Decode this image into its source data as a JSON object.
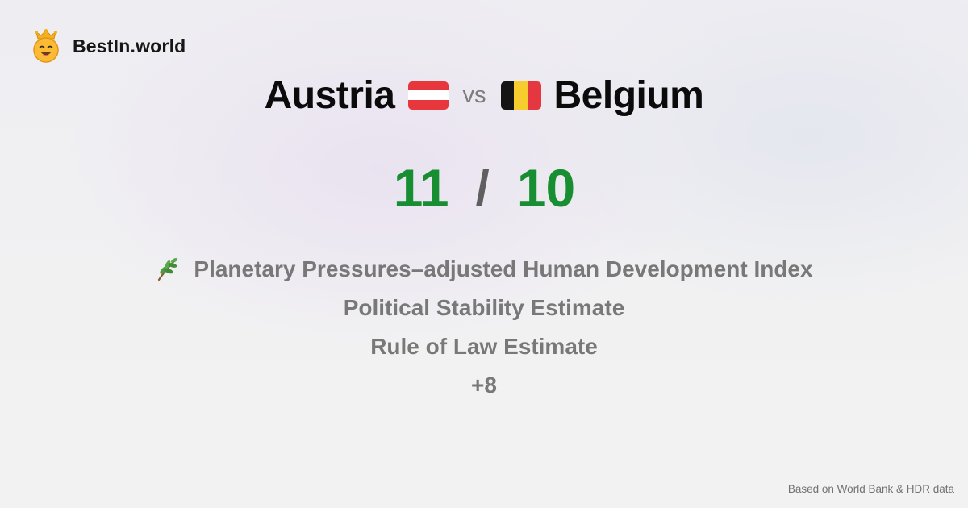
{
  "brand": {
    "name": "BestIn.world",
    "logo_icon": "crowned-smiley-icon"
  },
  "comparison": {
    "left_country": "Austria",
    "left_flag": "austria-flag-icon",
    "vs_label": "vs",
    "right_country": "Belgium",
    "right_flag": "belgium-flag-icon"
  },
  "score": {
    "left": "11",
    "separator": "/",
    "right": "10",
    "color": "#188e32"
  },
  "metrics": {
    "items": [
      {
        "label": "Planetary Pressures–adjusted Human Development Index",
        "icon": "plant-sprig-icon"
      },
      {
        "label": "Political Stability Estimate"
      },
      {
        "label": "Rule of Law Estimate"
      }
    ],
    "more": "+8"
  },
  "footer": {
    "source": "Based on World Bank & HDR data"
  }
}
